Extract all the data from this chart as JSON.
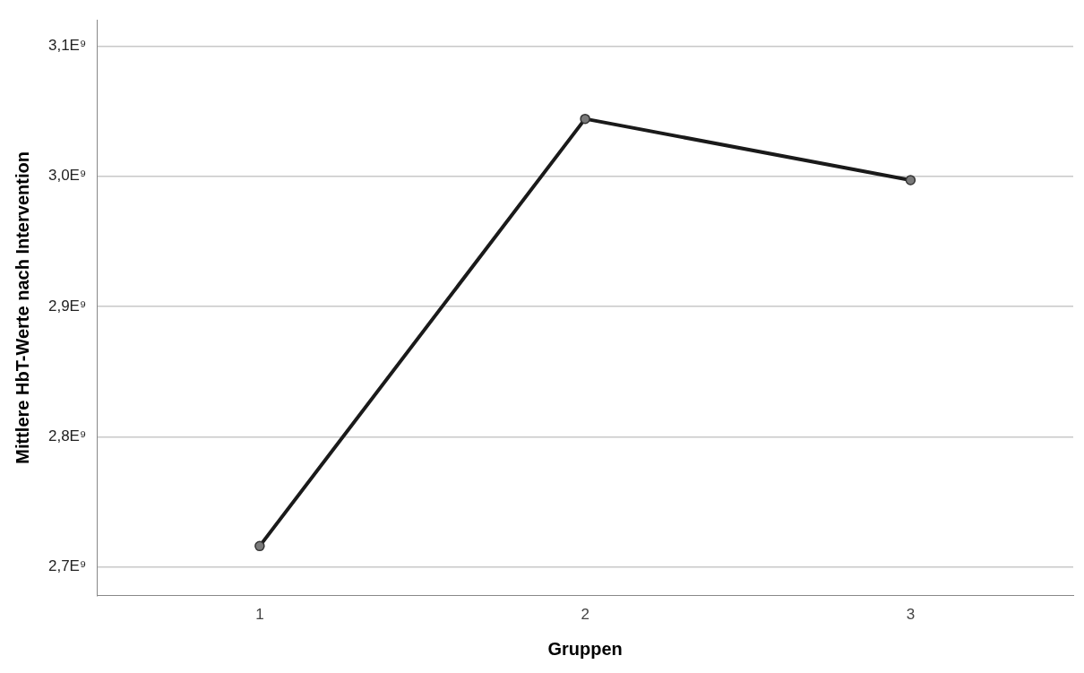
{
  "chart_data": {
    "type": "line",
    "xlabel": "Gruppen",
    "ylabel": "Mittlere HbT-Werte nach Intervention",
    "categories": [
      "1",
      "2",
      "3"
    ],
    "series": [
      {
        "color": "#1a1a1a",
        "values": [
          2.716,
          3.044,
          2.997
        ]
      }
    ],
    "ylim": [
      2.678,
      3.12
    ],
    "yticks": [
      {
        "value": 2.7,
        "label": "2,7E⁹"
      },
      {
        "value": 2.8,
        "label": "2,8E⁹"
      },
      {
        "value": 2.9,
        "label": "2,9E⁹"
      },
      {
        "value": 3.0,
        "label": "3,0E⁹"
      },
      {
        "value": 3.1,
        "label": "3,1E⁹"
      }
    ],
    "grid": "y",
    "legend": false,
    "marker": "circle",
    "line_style": "solid"
  }
}
